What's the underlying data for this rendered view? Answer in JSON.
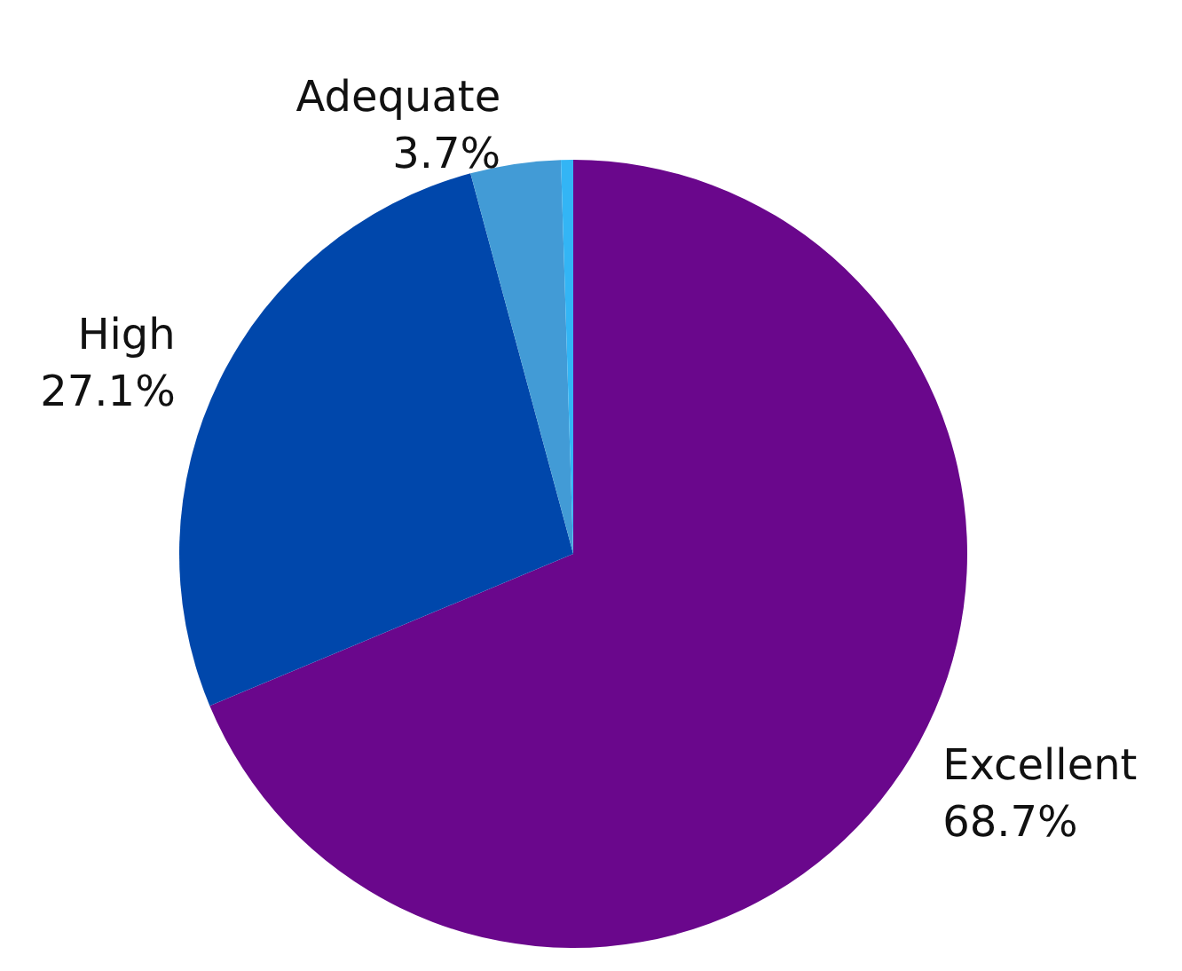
{
  "chart_data": {
    "type": "pie",
    "categories": [
      "Excellent",
      "High",
      "Adequate",
      null
    ],
    "values": [
      68.7,
      27.1,
      3.7,
      0.5
    ],
    "value_labels": [
      "68.7%",
      "27.1%",
      "3.7%",
      null
    ],
    "colors": [
      "#6a078c",
      "#0047ab",
      "#429bd6",
      "#33b5f5"
    ],
    "legend": false
  }
}
